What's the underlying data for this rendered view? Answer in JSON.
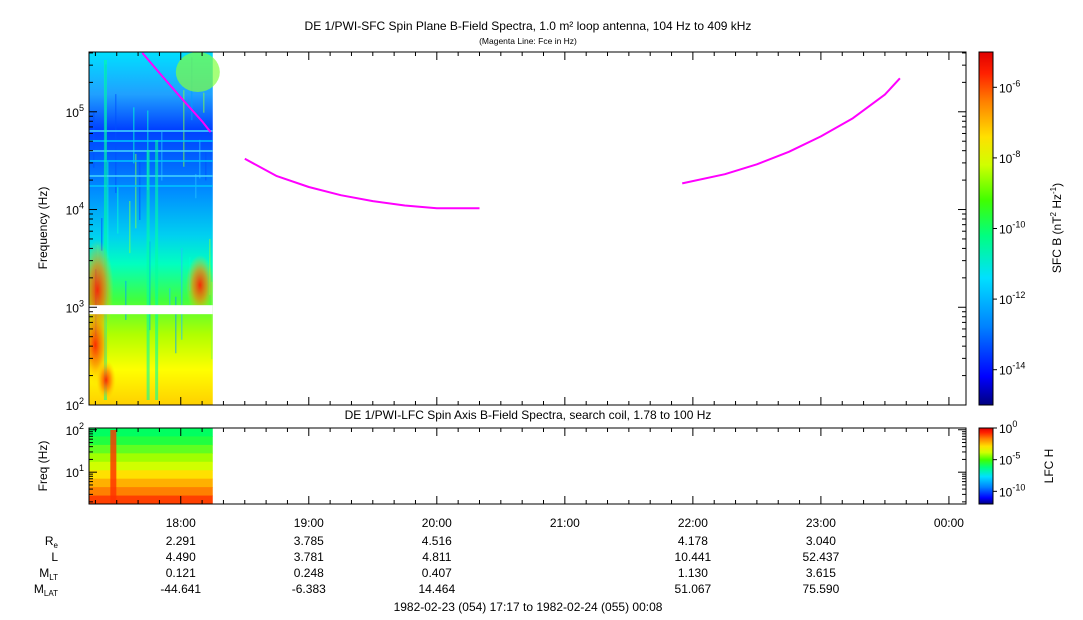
{
  "chart_data": [
    {
      "type": "heatmap",
      "panel": "sfc",
      "title": "DE 1/PWI-SFC  Spin Plane B-Field Spectra, 1.0 m² loop antenna, 104 Hz to 409 kHz",
      "subtitle": "(Magenta Line: Fce in Hz)",
      "ylabel": "Frequency (Hz)",
      "y_scale": "log",
      "ylim": [
        100,
        409000
      ],
      "y_ticks": [
        {
          "value": 100,
          "base": "10",
          "exp": "2"
        },
        {
          "value": 1000,
          "base": "10",
          "exp": "3"
        },
        {
          "value": 10000,
          "base": "10",
          "exp": "4"
        },
        {
          "value": 100000,
          "base": "10",
          "exp": "5"
        }
      ],
      "data_coverage": {
        "x_start": "17:17",
        "x_end": "18:15"
      },
      "data_gap": {
        "freq_low": 850,
        "freq_high": 1050
      },
      "colorbar": {
        "label_main": "SFC B (nT",
        "label_sup1": "2",
        "label_mid": " Hz",
        "label_sup2": "-1",
        "label_end": ")",
        "scale": "log",
        "range_log10": [
          -15,
          -5
        ],
        "ticks": [
          {
            "value": -6,
            "base": "10",
            "exp": "-6"
          },
          {
            "value": -8,
            "base": "10",
            "exp": "-8"
          },
          {
            "value": -10,
            "base": "10",
            "exp": "-10"
          },
          {
            "value": -12,
            "base": "10",
            "exp": "-12"
          },
          {
            "value": -14,
            "base": "10",
            "exp": "-14"
          }
        ]
      },
      "fce_line": {
        "name": "Fce",
        "color": "#ff00ff",
        "segments": [
          {
            "x": [
              "17:42",
              "17:50",
              "18:00",
              "18:10",
              "18:14"
            ],
            "y": [
              400000,
              250000,
              140000,
              80000,
              62000
            ]
          },
          {
            "x": [
              "18:30",
              "18:45",
              "19:00",
              "19:15",
              "19:30",
              "19:45",
              "20:00",
              "20:15",
              "20:20"
            ],
            "y": [
              33000,
              22000,
              17000,
              14000,
              12200,
              11000,
              10300,
              10300,
              10300
            ]
          },
          {
            "x": [
              "21:55",
              "22:15",
              "22:30",
              "22:45",
              "23:00",
              "23:15",
              "23:30",
              "23:37"
            ],
            "y": [
              18500,
              23000,
              29000,
              39000,
              56000,
              86000,
              150000,
              220000
            ]
          }
        ]
      }
    },
    {
      "type": "heatmap",
      "panel": "lfc",
      "title": "DE 1/PWI-LFC  Spin Axis B-Field Spectra, search coil, 1.78 to 100 Hz",
      "ylabel": "Freq (Hz)",
      "y_scale": "log",
      "ylim": [
        1.78,
        110
      ],
      "y_ticks": [
        {
          "value": 10,
          "base": "10",
          "exp": "1"
        },
        {
          "value": 100,
          "base": "10",
          "exp": "2"
        }
      ],
      "data_coverage": {
        "x_start": "17:17",
        "x_end": "18:15"
      },
      "colorbar": {
        "label_main": "LFC H",
        "scale": "log",
        "range_log10": [
          -12,
          0
        ],
        "ticks": [
          {
            "value": 0,
            "base": "10",
            "exp": "0"
          },
          {
            "value": -5,
            "base": "10",
            "exp": "-5"
          },
          {
            "value": -10,
            "base": "10",
            "exp": "-10"
          }
        ]
      }
    }
  ],
  "time_axis": {
    "start": "17:17",
    "end": "00:08",
    "major_ticks": [
      "18:00",
      "19:00",
      "20:00",
      "21:00",
      "22:00",
      "23:00",
      "00:00"
    ],
    "minor_step_minutes": 10
  },
  "ephemeris": {
    "rows": [
      {
        "label": "R",
        "sub": "e",
        "values": [
          "2.291",
          "3.785",
          "4.516",
          "",
          "4.178",
          "3.040",
          ""
        ]
      },
      {
        "label": "L",
        "sub": "",
        "values": [
          "4.490",
          "3.781",
          "4.811",
          "",
          "10.441",
          "52.437",
          ""
        ]
      },
      {
        "label": "M",
        "sub": "LT",
        "values": [
          "0.121",
          "0.248",
          "0.407",
          "",
          "1.130",
          "3.615",
          ""
        ]
      },
      {
        "label": "M",
        "sub": "LAT",
        "values": [
          "-44.641",
          "-6.383",
          "14.464",
          "",
          "51.067",
          "75.590",
          ""
        ]
      }
    ]
  },
  "time_range_label": "1982-02-23 (054) 17:17 to 1982-02-24 (055) 00:08"
}
